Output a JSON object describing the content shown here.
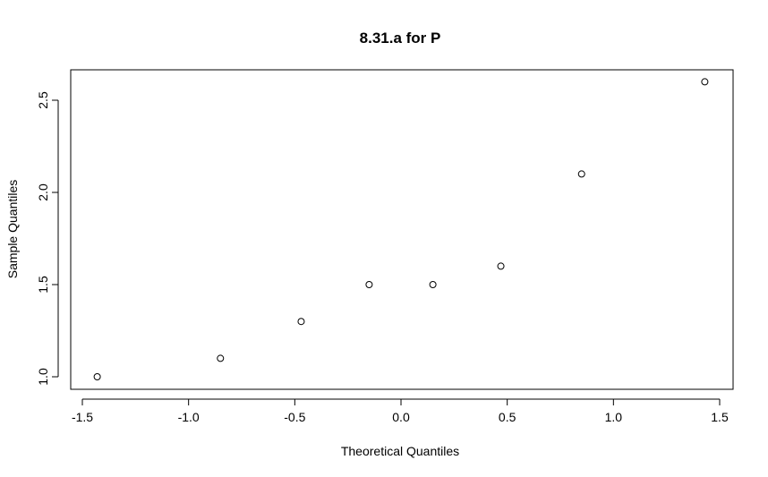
{
  "chart_data": {
    "type": "scatter",
    "title": "8.31.a for P",
    "xlabel": "Theoretical Quantiles",
    "ylabel": "Sample Quantiles",
    "x": [
      -1.43,
      -0.85,
      -0.47,
      -0.15,
      0.15,
      0.47,
      0.85,
      1.43
    ],
    "y": [
      1.0,
      1.1,
      1.3,
      1.5,
      1.5,
      1.6,
      2.1,
      2.6
    ],
    "xlim": [
      -1.5,
      1.5
    ],
    "ylim": [
      1.0,
      2.5
    ],
    "xticks": [
      -1.5,
      -1.0,
      -0.5,
      0.0,
      0.5,
      1.0,
      1.5
    ],
    "xtick_labels": [
      "-1.5",
      "-1.0",
      "-0.5",
      "0.0",
      "0.5",
      "1.0",
      "1.5"
    ],
    "yticks": [
      1.0,
      1.5,
      2.0,
      2.5
    ],
    "ytick_labels": [
      "1.0",
      "1.5",
      "2.0",
      "2.5"
    ],
    "grid": false,
    "legend": "none",
    "marker": "open-circle"
  }
}
